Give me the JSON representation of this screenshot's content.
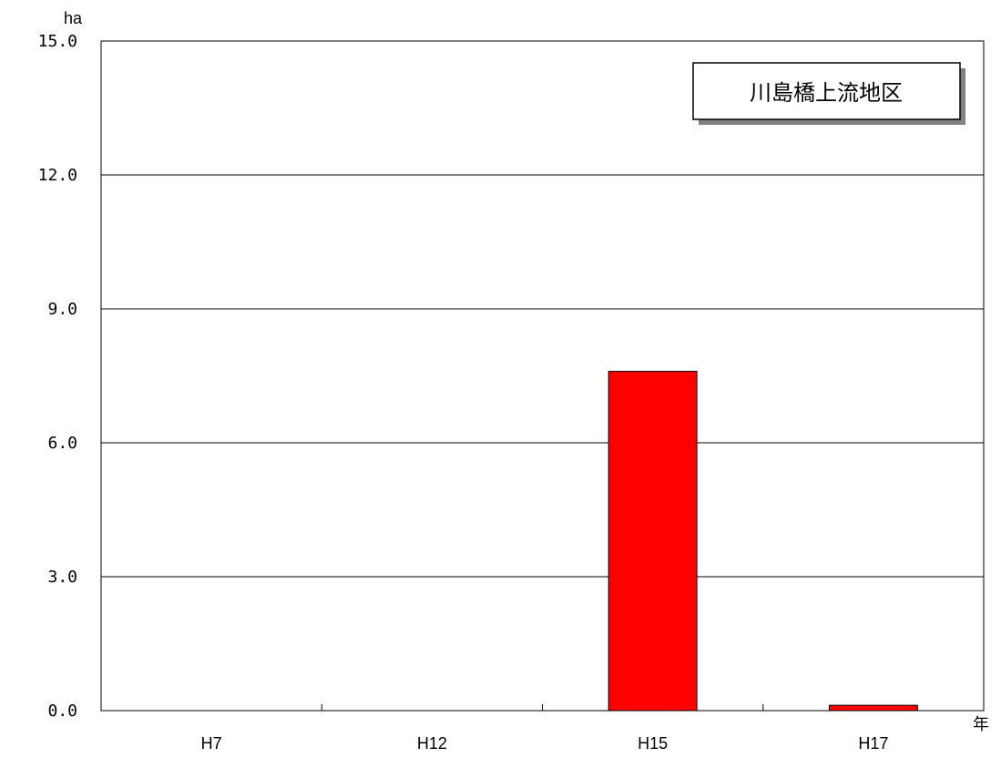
{
  "chart_data": {
    "type": "bar",
    "title": "川島橋上流地区",
    "ylabel": "ha",
    "xlabel": "年",
    "categories": [
      "H7",
      "H12",
      "H15",
      "H17"
    ],
    "values": [
      0,
      0,
      7.6,
      0.12
    ],
    "ylim": [
      0,
      15
    ],
    "yticks": [
      "0.0",
      "3.0",
      "6.0",
      "9.0",
      "12.0",
      "15.0"
    ],
    "bar_color": "#ff0000",
    "grid": true,
    "legend_position": "top-right"
  }
}
